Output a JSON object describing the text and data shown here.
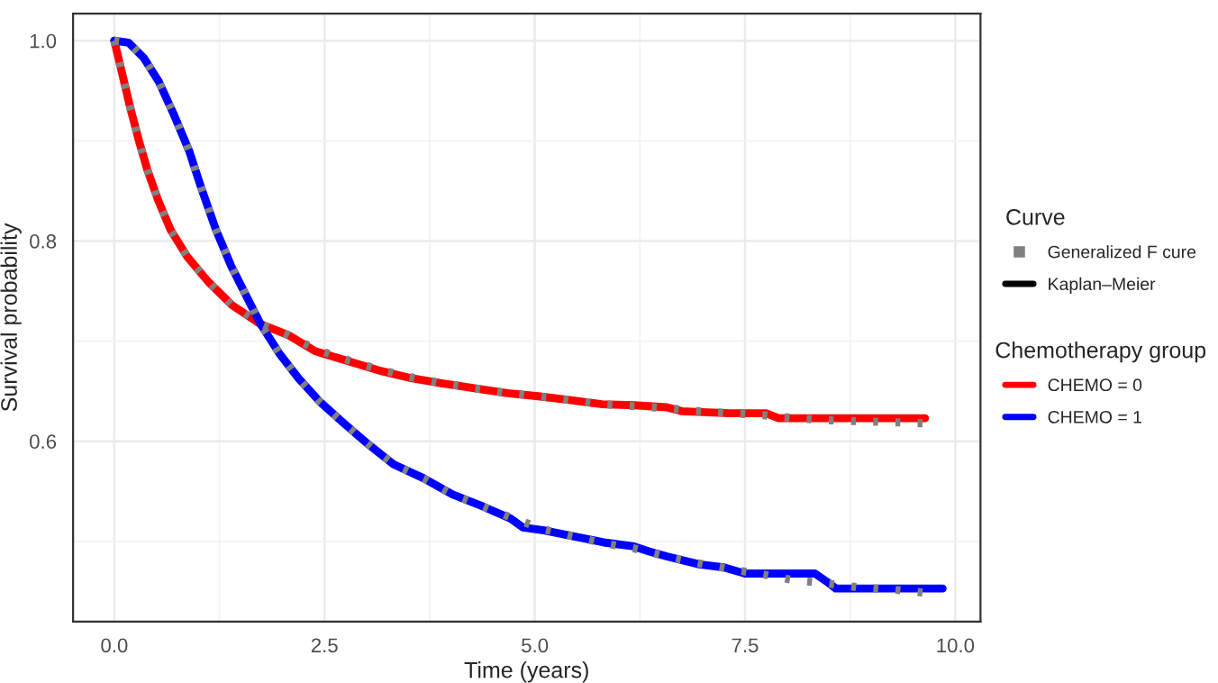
{
  "chart_data": {
    "type": "line",
    "xlabel": "Time (years)",
    "ylabel": "Survival probability",
    "legend_title": "Curve",
    "annotations": [
      "Kaplan–Meier",
      "Chemotherapy group"
    ],
    "xlim": [
      -0.49,
      10.3
    ],
    "ylim": [
      0.42,
      1.027
    ],
    "xticks": [
      {
        "value": 0,
        "label": "0.0"
      },
      {
        "value": 2.5,
        "label": "2.5"
      },
      {
        "value": 5,
        "label": "5.0"
      },
      {
        "value": 7.5,
        "label": "7.5"
      },
      {
        "value": 10,
        "label": "10.0"
      }
    ],
    "yticks": [
      {
        "value": 0.6,
        "label": "0.6"
      },
      {
        "value": 0.8,
        "label": "0.8"
      },
      {
        "value": 1.0,
        "label": "1.0"
      }
    ],
    "grid": true,
    "legend": "right",
    "marker": "none",
    "series": [
      {
        "name": "CHEMO = 0",
        "color": "#ff0000",
        "line_style": "solid",
        "x": [
          0,
          0.1,
          0.19,
          0.29,
          0.39,
          0.52,
          0.67,
          0.87,
          1.12,
          1.4,
          1.74,
          2.07,
          2.39,
          2.78,
          3.18,
          3.53,
          3.89,
          4.28,
          4.68,
          5.04,
          5.43,
          5.8,
          6.18,
          6.57,
          6.75,
          7.32,
          7.75,
          7.9,
          8.47,
          9.64
        ],
        "values": [
          1.0,
          0.965,
          0.933,
          0.901,
          0.872,
          0.841,
          0.811,
          0.784,
          0.759,
          0.736,
          0.717,
          0.706,
          0.69,
          0.68,
          0.67,
          0.663,
          0.658,
          0.653,
          0.648,
          0.645,
          0.641,
          0.637,
          0.636,
          0.634,
          0.63,
          0.628,
          0.628,
          0.623,
          0.623,
          0.623
        ]
      },
      {
        "name": "CHEMO = 1",
        "color": "#0000ff",
        "line_style": "solid",
        "x": [
          0,
          0.17,
          0.35,
          0.53,
          0.71,
          0.89,
          1.03,
          1.21,
          1.39,
          1.57,
          1.74,
          1.96,
          2.19,
          2.45,
          2.73,
          3.02,
          3.32,
          3.68,
          4.02,
          4.38,
          4.71,
          4.86,
          5.11,
          5.47,
          5.82,
          6.18,
          6.36,
          6.57,
          6.96,
          7.25,
          7.5,
          8.33,
          8.47,
          8.58,
          9.85
        ],
        "values": [
          1.0,
          0.998,
          0.983,
          0.959,
          0.926,
          0.89,
          0.854,
          0.811,
          0.775,
          0.745,
          0.717,
          0.688,
          0.663,
          0.639,
          0.618,
          0.597,
          0.577,
          0.563,
          0.547,
          0.535,
          0.523,
          0.514,
          0.511,
          0.505,
          0.499,
          0.495,
          0.49,
          0.485,
          0.477,
          0.474,
          0.468,
          0.468,
          0.46,
          0.453,
          0.453
        ]
      },
      {
        "name": "Generalized F cure",
        "color": "#808080",
        "line_style": "dotted",
        "x": [
          0,
          0.1,
          0.19,
          0.29,
          0.39,
          0.52,
          0.67,
          0.87,
          1.12,
          1.4,
          1.74,
          2.07,
          2.39,
          2.78,
          3.18,
          3.53,
          3.89,
          4.28,
          4.68,
          5.04,
          5.43,
          5.8,
          6.18,
          6.57,
          6.96,
          7.34,
          7.72,
          8.1,
          8.48,
          8.86,
          9.24,
          9.61
        ],
        "values": [
          1.0,
          0.965,
          0.933,
          0.901,
          0.872,
          0.841,
          0.811,
          0.784,
          0.759,
          0.736,
          0.717,
          0.706,
          0.692,
          0.681,
          0.671,
          0.664,
          0.658,
          0.653,
          0.648,
          0.645,
          0.641,
          0.637,
          0.635,
          0.633,
          0.63,
          0.628,
          0.626,
          0.623,
          0.621,
          0.62,
          0.619,
          0.618
        ]
      },
      {
        "color": "#808080",
        "line_style": "dotted",
        "x": [
          0,
          0.17,
          0.35,
          0.53,
          0.71,
          0.89,
          1.03,
          1.21,
          1.39,
          1.57,
          1.74,
          1.96,
          2.19,
          2.45,
          2.73,
          3.02,
          3.32,
          3.68,
          4.02,
          4.38,
          4.71,
          5.11,
          5.47,
          5.82,
          6.18,
          6.57,
          6.96,
          7.34,
          7.72,
          8.1,
          8.48,
          8.86,
          9.24,
          9.61
        ],
        "values": [
          1.0,
          0.998,
          0.983,
          0.959,
          0.926,
          0.89,
          0.854,
          0.811,
          0.775,
          0.745,
          0.717,
          0.688,
          0.663,
          0.639,
          0.618,
          0.597,
          0.577,
          0.563,
          0.547,
          0.535,
          0.524,
          0.512,
          0.505,
          0.498,
          0.493,
          0.485,
          0.478,
          0.472,
          0.467,
          0.461,
          0.458,
          0.454,
          0.452,
          0.449
        ]
      }
    ]
  }
}
